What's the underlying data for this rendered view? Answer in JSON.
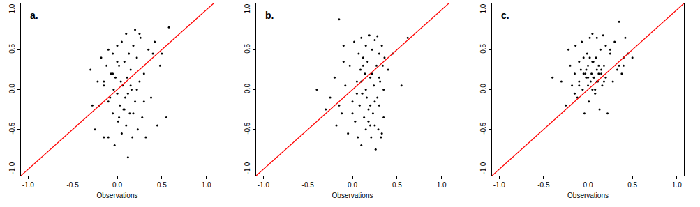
{
  "chart_data": [
    {
      "type": "scatter",
      "title": "a.",
      "x_label": "Observations",
      "xlim": [
        -1.08,
        1.08
      ],
      "ylim": [
        -1.08,
        1.08
      ],
      "xticks": [
        {
          "value": -1,
          "label": "-1.0"
        },
        -0.5,
        {
          "value": 0,
          "label": "0.0"
        },
        0.5,
        {
          "value": 1,
          "label": "1.0"
        }
      ],
      "yticks": [
        {
          "value": -1,
          "label": "-1.0"
        },
        -0.5,
        {
          "value": 0,
          "label": "0.0"
        },
        0.5,
        {
          "value": 1,
          "label": "1.0"
        }
      ],
      "series": [
        {
          "type": "scatter",
          "color": "#000000",
          "marker": "circle",
          "x": [
            -0.3,
            -0.25,
            -0.22,
            -0.2,
            -0.18,
            -0.15,
            -0.15,
            -0.12,
            -0.1,
            -0.1,
            -0.08,
            -0.07,
            -0.05,
            -0.05,
            -0.04,
            -0.03,
            -0.02,
            0,
            0,
            0.01,
            0.02,
            0.03,
            0.04,
            0.05,
            0.05,
            0.06,
            0.07,
            0.08,
            0.09,
            0.1,
            0.1,
            0.11,
            0.12,
            0.13,
            0.14,
            0.15,
            0.16,
            0.17,
            0.18,
            0.2,
            0.2,
            0.22,
            0.23,
            0.25,
            0.26,
            0.28,
            0.3,
            0.32,
            0.35,
            0.38,
            0.4,
            0.42,
            0.45,
            0.48,
            0.5,
            0.55,
            0.58,
            -0.28,
            -0.1,
            0,
            0.08,
            0.15,
            0.25,
            -0.05,
            0.12,
            0.3,
            0.02,
            -0.15,
            0.18,
            0.22
          ],
          "values": [
            0.25,
            -0.5,
            0.1,
            -0.2,
            0.4,
            -0.6,
            0.05,
            0.3,
            -0.15,
            0.5,
            -0.1,
            0.2,
            -0.3,
            0.45,
            0,
            -0.7,
            0.15,
            -0.05,
            0.55,
            -0.4,
            0.3,
            -0.2,
            0.1,
            0.6,
            -0.55,
            0.05,
            -0.25,
            0.35,
            -0.1,
            0.7,
            -0.45,
            0.15,
            -0.85,
            0.45,
            -0.3,
            0.25,
            0,
            -0.6,
            0.55,
            0.75,
            -0.15,
            0.4,
            -0.5,
            0.1,
            0.65,
            -0.35,
            0.2,
            -0.6,
            0.5,
            -0.1,
            0.45,
            0.6,
            -0.45,
            0.3,
            0.45,
            -0.35,
            0.78,
            -0.2,
            -0.6,
            0.35,
            -0.25,
            0.05,
            0.7,
            0.2,
            -0.05,
            -0.15,
            -0.35,
            0.1,
            -0.3,
            0
          ]
        },
        {
          "type": "line",
          "color": "#ff0000",
          "line_style": "solid",
          "x": [
            -1.08,
            1.08
          ],
          "values": [
            -1.08,
            1.08
          ]
        }
      ]
    },
    {
      "type": "scatter",
      "title": "b.",
      "x_label": "Observations",
      "xlim": [
        -1.08,
        1.08
      ],
      "ylim": [
        -1.08,
        1.08
      ],
      "xticks": [
        {
          "value": -1,
          "label": "-1.0"
        },
        -0.5,
        {
          "value": 0,
          "label": "0.0"
        },
        0.5,
        {
          "value": 1,
          "label": "1.0"
        }
      ],
      "yticks": [
        {
          "value": -1,
          "label": "-1.0"
        },
        -0.5,
        {
          "value": 0,
          "label": "0.0"
        },
        0.5,
        {
          "value": 1,
          "label": "1.0"
        }
      ],
      "series": [
        {
          "type": "scatter",
          "color": "#000000",
          "marker": "circle",
          "x": [
            -0.4,
            -0.3,
            -0.25,
            -0.2,
            -0.18,
            -0.15,
            -0.12,
            -0.1,
            -0.08,
            -0.05,
            -0.03,
            0,
            0.02,
            0.03,
            0.05,
            0.06,
            0.07,
            0.08,
            0.09,
            0.1,
            0.1,
            0.11,
            0.12,
            0.13,
            0.14,
            0.15,
            0.15,
            0.16,
            0.17,
            0.18,
            0.19,
            0.2,
            0.2,
            0.21,
            0.22,
            0.23,
            0.24,
            0.25,
            0.25,
            0.26,
            0.27,
            0.28,
            0.29,
            0.3,
            0.3,
            0.31,
            0.32,
            0.33,
            0.34,
            0.35,
            0.35,
            0.36,
            0.4,
            0.45,
            0.55,
            0.62,
            -0.15,
            0.05,
            0.12,
            0.18,
            0.22,
            0.28,
            0.33,
            -0.1,
            0,
            0.1,
            0.2,
            0.3,
            0.25,
            0.15
          ],
          "values": [
            0,
            -0.25,
            -0.1,
            0.15,
            -0.45,
            0.88,
            -0.3,
            0.55,
            0.05,
            -0.55,
            0.3,
            -0.15,
            0.6,
            -0.4,
            0.1,
            -0.6,
            0.45,
            -0.2,
            0.25,
            -0.7,
            0.65,
            -0.05,
            0.4,
            -0.35,
            0.2,
            -0.5,
            0.55,
            -0.1,
            0.35,
            -0.25,
            0.68,
            -0.45,
            0.15,
            -0.6,
            0.5,
            -0.3,
            0.05,
            0.62,
            -0.15,
            -0.75,
            0.3,
            0.67,
            -0.5,
            0.45,
            -0.2,
            0.1,
            -0.6,
            0.55,
            0.3,
            0,
            -0.35,
            0.4,
            0.25,
            0.45,
            0.05,
            0.65,
            -0.2,
            -0.05,
            0.3,
            -0.4,
            0.2,
            -0.1,
            -0.55,
            0.35,
            -0.3,
            0.1,
            -0.2,
            0.15,
            -0.45,
            0
          ]
        },
        {
          "type": "line",
          "color": "#ff0000",
          "line_style": "solid",
          "x": [
            -1.08,
            1.08
          ],
          "values": [
            -1.08,
            1.08
          ]
        }
      ]
    },
    {
      "type": "scatter",
      "title": "c.",
      "x_label": "Observations",
      "xlim": [
        -1.08,
        1.08
      ],
      "ylim": [
        -1.08,
        1.08
      ],
      "xticks": [
        {
          "value": -1,
          "label": "-1.0"
        },
        -0.5,
        {
          "value": 0,
          "label": "0.0"
        },
        0.5,
        {
          "value": 1,
          "label": "1.0"
        }
      ],
      "yticks": [
        {
          "value": -1,
          "label": "-1.0"
        },
        -0.5,
        {
          "value": 0,
          "label": "0.0"
        },
        0.5,
        {
          "value": 1,
          "label": "1.0"
        }
      ],
      "series": [
        {
          "type": "scatter",
          "color": "#000000",
          "marker": "circle",
          "x": [
            -0.4,
            -0.3,
            -0.25,
            -0.22,
            -0.2,
            -0.18,
            -0.15,
            -0.14,
            -0.12,
            -0.1,
            -0.1,
            -0.08,
            -0.07,
            -0.06,
            -0.05,
            -0.04,
            -0.03,
            -0.02,
            -0.01,
            0,
            0,
            0.01,
            0.02,
            0.03,
            0.04,
            0.05,
            0.05,
            0.06,
            0.07,
            0.08,
            0.09,
            0.1,
            0.1,
            0.11,
            0.12,
            0.13,
            0.14,
            0.15,
            0.16,
            0.17,
            0.18,
            0.2,
            0.2,
            0.22,
            0.25,
            0.28,
            0.3,
            0.33,
            0.35,
            0.38,
            0.4,
            0.42,
            0.45,
            0.5,
            -0.15,
            -0.05,
            0,
            0.05,
            0.1,
            0.15,
            -0.1,
            0.02,
            0.08,
            0.12,
            0.18,
            0.25,
            0.35,
            -0.02,
            0.06,
            0.4
          ],
          "values": [
            0.15,
            0.1,
            -0.2,
            0.5,
            0.3,
            0.05,
            0.2,
            0.55,
            -0.1,
            0.35,
            0.1,
            0.25,
            0.6,
            0,
            0.4,
            -0.3,
            0.2,
            0.15,
            0.45,
            0.05,
            0.3,
            -0.15,
            0.65,
            0.1,
            0.2,
            0.7,
            0,
            0.35,
            0.15,
            -0.05,
            0.4,
            0.25,
            0.65,
            0.1,
            0.3,
            -0.25,
            0.5,
            0.2,
            0.05,
            0.68,
            0.3,
            0.15,
            0.55,
            -0.3,
            0.45,
            0.1,
            0.6,
            0.25,
            0.3,
            0.2,
            0.4,
            0.65,
            0.45,
            0.4,
            -0.05,
            0.2,
            0.15,
            0.35,
            0.1,
            0.25,
            0.05,
            0.4,
            0,
            0.2,
            0.1,
            0.5,
            0.85,
            0.25,
            0.15,
            0.3
          ]
        },
        {
          "type": "line",
          "color": "#ff0000",
          "line_style": "solid",
          "x": [
            -1.08,
            1.08
          ],
          "values": [
            -1.08,
            1.08
          ]
        }
      ]
    }
  ]
}
